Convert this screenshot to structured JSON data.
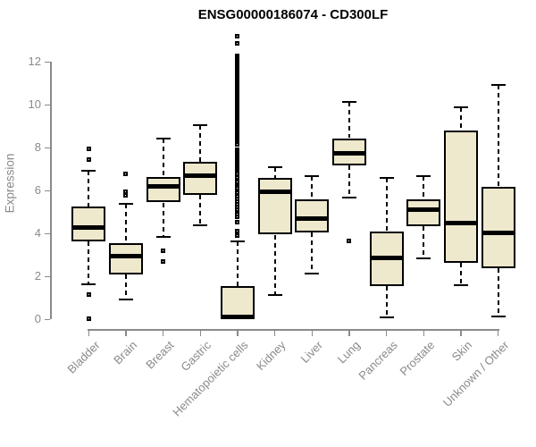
{
  "colors": {
    "background": "#FFFFFF",
    "box_fill": "#EEE8CD",
    "box_border": "#000000",
    "median": "#000000",
    "axis": "#8A8A8A",
    "title": "#000000"
  },
  "chart_data": {
    "type": "boxplot",
    "title": "ENSG00000186074 - CD300LF",
    "xlabel": "",
    "ylabel": "Expression",
    "ylim": [
      0,
      12
    ],
    "yticks": [
      0,
      2,
      4,
      6,
      8,
      10,
      12
    ],
    "grid": false,
    "legend": false,
    "categories": [
      "Bladder",
      "Brain",
      "Breast",
      "Gastric",
      "Hematopoietic cells",
      "Kidney",
      "Liver",
      "Lung",
      "Pancreas",
      "Prostate",
      "Skin",
      "Unknown / Other"
    ],
    "boxes": [
      {
        "name": "Bladder",
        "whisker_low": 1.65,
        "q1": 3.65,
        "median": 4.3,
        "q3": 5.25,
        "whisker_high": 6.95,
        "outliers": [
          7.95,
          7.45,
          1.15,
          0.05
        ]
      },
      {
        "name": "Brain",
        "whisker_low": 0.95,
        "q1": 2.1,
        "median": 2.95,
        "q3": 3.55,
        "whisker_high": 5.4,
        "outliers": [
          6.8,
          5.95,
          5.8
        ]
      },
      {
        "name": "Breast",
        "whisker_low": 3.85,
        "q1": 5.45,
        "median": 6.2,
        "q3": 6.65,
        "whisker_high": 8.45,
        "outliers": [
          3.2,
          2.7
        ]
      },
      {
        "name": "Gastric",
        "whisker_low": 4.4,
        "q1": 5.8,
        "median": 6.7,
        "q3": 7.35,
        "whisker_high": 9.05,
        "outliers": []
      },
      {
        "name": "Hematopoietic cells",
        "whisker_low": 0.05,
        "q1": 0.05,
        "median": 0.12,
        "q3": 1.55,
        "whisker_high": 3.65,
        "outliers": [
          13.2,
          12.85,
          12.3,
          12.22,
          12.14,
          12.06,
          11.98,
          11.9,
          11.82,
          11.74,
          11.66,
          11.58,
          11.5,
          11.42,
          11.34,
          11.26,
          11.18,
          11.1,
          11.02,
          10.94,
          10.86,
          10.78,
          10.7,
          10.62,
          10.54,
          10.46,
          10.38,
          10.3,
          10.22,
          10.14,
          10.06,
          9.98,
          9.9,
          9.82,
          9.74,
          9.66,
          9.58,
          9.5,
          9.42,
          9.34,
          9.26,
          9.18,
          9.1,
          9.02,
          8.94,
          8.86,
          8.78,
          8.7,
          8.62,
          8.54,
          8.46,
          8.38,
          8.3,
          8.22,
          8.15,
          7.9,
          7.82,
          7.74,
          7.66,
          7.58,
          7.5,
          7.42,
          7.34,
          7.26,
          7.18,
          7.1,
          7.02,
          6.94,
          6.86,
          6.78,
          6.6,
          6.5,
          6.42,
          6.3,
          6.22,
          6.1,
          6.0,
          5.9,
          5.75,
          5.62,
          5.5,
          5.38,
          5.25,
          5.12,
          5.0,
          4.9,
          4.8,
          4.55,
          4.1,
          3.9
        ]
      },
      {
        "name": "Kidney",
        "whisker_low": 1.15,
        "q1": 3.95,
        "median": 5.95,
        "q3": 6.6,
        "whisker_high": 7.1,
        "outliers": []
      },
      {
        "name": "Liver",
        "whisker_low": 2.15,
        "q1": 4.05,
        "median": 4.7,
        "q3": 5.6,
        "whisker_high": 6.7,
        "outliers": []
      },
      {
        "name": "Lung",
        "whisker_low": 5.7,
        "q1": 7.2,
        "median": 7.75,
        "q3": 8.45,
        "whisker_high": 10.15,
        "outliers": [
          3.65
        ]
      },
      {
        "name": "Pancreas",
        "whisker_low": 0.1,
        "q1": 1.55,
        "median": 2.85,
        "q3": 4.1,
        "whisker_high": 6.6,
        "outliers": []
      },
      {
        "name": "Prostate",
        "whisker_low": 2.85,
        "q1": 4.35,
        "median": 5.1,
        "q3": 5.6,
        "whisker_high": 6.7,
        "outliers": []
      },
      {
        "name": "Skin",
        "whisker_low": 1.6,
        "q1": 2.65,
        "median": 4.5,
        "q3": 8.8,
        "whisker_high": 9.9,
        "outliers": []
      },
      {
        "name": "Unknown / Other",
        "whisker_low": 0.15,
        "q1": 2.4,
        "median": 4.05,
        "q3": 6.2,
        "whisker_high": 10.95,
        "outliers": []
      }
    ]
  }
}
